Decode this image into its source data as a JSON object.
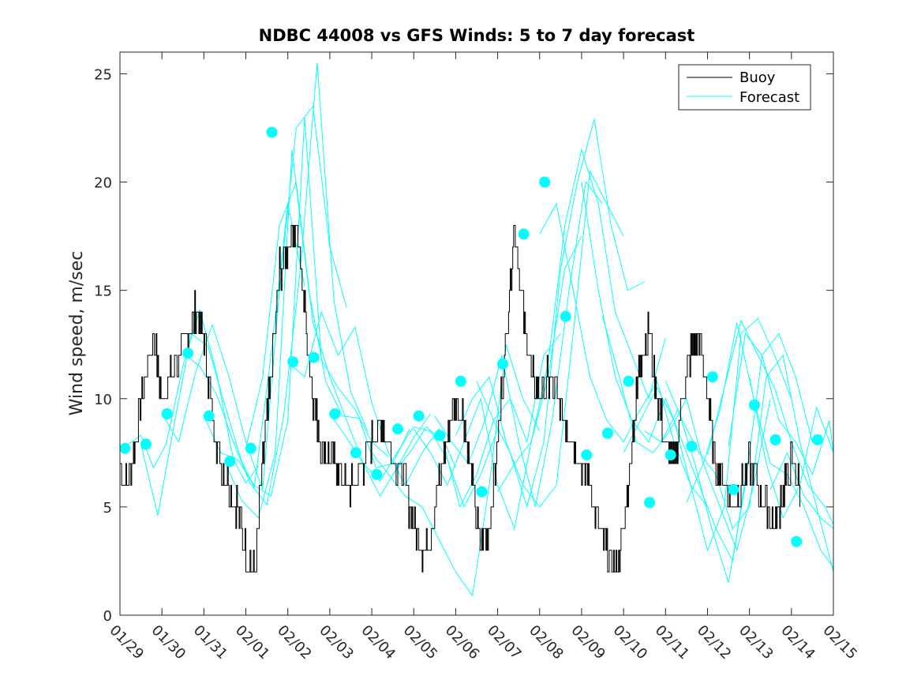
{
  "chart_data": {
    "type": "line",
    "title": "NDBC 44008 vs GFS Winds: 5 to 7 day forecast",
    "xlabel": "",
    "ylabel": "Wind speed, m/sec",
    "xlim": [
      0,
      17
    ],
    "ylim": [
      0,
      26
    ],
    "x_unit": "days since 01/29",
    "x_tick_values": [
      0,
      1,
      2,
      3,
      4,
      5,
      6,
      7,
      8,
      9,
      10,
      11,
      12,
      13,
      14,
      15,
      16,
      17
    ],
    "x_tick_labels": [
      "01/29",
      "01/30",
      "01/31",
      "02/01",
      "02/02",
      "02/03",
      "02/04",
      "02/05",
      "02/06",
      "02/07",
      "02/08",
      "02/09",
      "02/10",
      "02/11",
      "02/12",
      "02/13",
      "02/14",
      "02/15"
    ],
    "y_tick_values": [
      0,
      5,
      10,
      15,
      20,
      25
    ],
    "y_tick_labels": [
      "0",
      "5",
      "10",
      "15",
      "20",
      "25"
    ],
    "legend": {
      "placement": "top-right",
      "entries": [
        {
          "label": "Buoy",
          "color": "#000000"
        },
        {
          "label": "Forecast",
          "color": "#00ffff"
        }
      ]
    },
    "colors": {
      "buoy": "#000000",
      "forecast": "#00ffff",
      "axis": "#262626"
    },
    "buoy": {
      "x": [
        0,
        0.15,
        0.3,
        0.45,
        0.6,
        0.8,
        1.0,
        1.2,
        1.4,
        1.6,
        1.8,
        2.0,
        2.2,
        2.4,
        2.6,
        2.8,
        3.0,
        3.2,
        3.4,
        3.6,
        3.8,
        4.0,
        4.2,
        4.4,
        4.6,
        4.8,
        5.0,
        5.2,
        5.4,
        5.6,
        5.8,
        6.0,
        6.2,
        6.4,
        6.6,
        6.8,
        7.0,
        7.2,
        7.4,
        7.6,
        7.8,
        8.0,
        8.2,
        8.4,
        8.6,
        8.8,
        9.0,
        9.2,
        9.4,
        9.6,
        9.8,
        10.0,
        10.2,
        10.4,
        10.6,
        10.8,
        11.0,
        11.2,
        11.4,
        11.6,
        11.8,
        12.0,
        12.2,
        12.4,
        12.6,
        12.8,
        13.0,
        13.2,
        13.4,
        13.6,
        13.8,
        14.0,
        14.2,
        14.4,
        14.6,
        14.8,
        15.0,
        15.2,
        15.4,
        15.6,
        15.8,
        16.0,
        16.2
      ],
      "y": [
        7,
        6,
        7,
        9,
        11,
        13,
        10,
        11,
        12,
        13,
        14,
        13,
        9,
        7,
        6,
        5,
        3,
        2,
        7,
        11,
        16,
        17,
        18,
        14,
        10,
        8,
        7,
        7,
        6,
        6,
        7,
        8,
        9,
        8,
        7,
        6,
        4,
        3,
        4,
        6,
        8,
        10,
        9,
        6,
        3,
        4,
        8,
        13,
        18,
        14,
        11,
        10,
        11,
        10,
        9,
        8,
        7,
        6,
        4,
        3,
        2,
        4,
        8,
        12,
        13,
        10,
        8,
        7,
        10,
        12,
        13,
        10,
        7,
        6,
        5,
        6,
        7,
        6,
        5,
        4,
        6,
        7,
        6
      ],
      "jitter": 1
    },
    "forecast_series": [
      {
        "name": "run1",
        "x": [
          0,
          0.2,
          0.5,
          0.8,
          1.1,
          1.5,
          1.9,
          2.3,
          2.7,
          3.0,
          3.3
        ],
        "y": [
          7.7,
          7.9,
          8.3,
          6.8,
          7.9,
          11.5,
          14.1,
          11.2,
          7.2,
          6.1,
          6.9
        ]
      },
      {
        "name": "run2",
        "x": [
          0.5,
          0.9,
          1.3,
          1.7,
          2.1,
          2.5,
          2.9,
          3.2,
          3.6,
          4.0,
          4.4
        ],
        "y": [
          7.9,
          4.6,
          8.9,
          13.0,
          12.4,
          9.7,
          7.1,
          5.9,
          12.0,
          19.0,
          15.2
        ]
      },
      {
        "name": "run3",
        "x": [
          1.0,
          1.4,
          1.8,
          2.2,
          2.6,
          3.0,
          3.4,
          3.8,
          4.2,
          4.6,
          5.0,
          5.4
        ],
        "y": [
          9.3,
          8.0,
          11.2,
          13.4,
          11.0,
          8.0,
          5.8,
          15.0,
          22.5,
          23.5,
          17.0,
          14.2
        ]
      },
      {
        "name": "run4",
        "x": [
          1.5,
          1.9,
          2.3,
          2.7,
          3.1,
          3.5,
          3.9,
          4.3,
          4.7,
          5.1,
          5.5,
          5.9
        ],
        "y": [
          12.1,
          11.5,
          10.2,
          8.0,
          6.1,
          5.1,
          9.2,
          16.0,
          25.5,
          14.5,
          10.3,
          8.5
        ]
      },
      {
        "name": "run5",
        "x": [
          2.0,
          2.4,
          2.8,
          3.2,
          3.6,
          4.0,
          4.4,
          4.8,
          5.2,
          5.6,
          6.0,
          6.4
        ],
        "y": [
          9.2,
          7.5,
          7.2,
          6.0,
          5.5,
          9.0,
          23.0,
          11.8,
          10.5,
          9.5,
          8.0,
          7.3
        ]
      },
      {
        "name": "run6",
        "x": [
          2.5,
          2.9,
          3.3,
          3.7,
          4.1,
          4.5,
          4.9,
          5.3,
          5.7,
          6.1,
          6.5,
          6.9
        ],
        "y": [
          7.1,
          5.3,
          4.5,
          7.5,
          21.5,
          15.0,
          10.8,
          9.2,
          9.1,
          6.8,
          7.0,
          8.6
        ]
      },
      {
        "name": "run7",
        "x": [
          3.0,
          3.4,
          3.8,
          4.2,
          4.6,
          5.0,
          5.4,
          5.8,
          6.2,
          6.6,
          7.0,
          7.4
        ],
        "y": [
          7.7,
          11.0,
          18.0,
          20.0,
          13.5,
          11.0,
          9.0,
          7.0,
          5.5,
          6.8,
          8.2,
          9.3
        ]
      },
      {
        "name": "run8",
        "x": [
          4.0,
          4.4,
          4.8,
          5.2,
          5.6,
          6.0,
          6.4,
          6.8,
          7.2,
          7.6,
          8.0
        ],
        "y": [
          11.7,
          11.0,
          14.0,
          12.0,
          13.3,
          9.8,
          7.5,
          6.0,
          7.5,
          8.6,
          6.8
        ]
      },
      {
        "name": "run9",
        "x": [
          5.0,
          5.4,
          5.8,
          6.2,
          6.6,
          7.0,
          7.4,
          7.8,
          8.2,
          8.6,
          9.0
        ],
        "y": [
          9.3,
          8.2,
          7.0,
          6.2,
          7.5,
          8.7,
          8.5,
          7.2,
          5.0,
          6.5,
          8.6
        ]
      },
      {
        "name": "run10",
        "x": [
          6.0,
          6.4,
          6.8,
          7.2,
          7.6,
          8.0,
          8.4,
          8.8,
          9.2,
          9.6,
          10.0
        ],
        "y": [
          7.5,
          6.5,
          5.5,
          5.0,
          3.5,
          2.0,
          0.9,
          6.0,
          12.5,
          10.0,
          8.5
        ]
      },
      {
        "name": "run11",
        "x": [
          6.5,
          6.9,
          7.3,
          7.7,
          8.1,
          8.5,
          8.9,
          9.3,
          9.7,
          10.1,
          10.5
        ],
        "y": [
          6.5,
          7.5,
          8.7,
          8.0,
          5.0,
          6.5,
          9.0,
          10.0,
          8.0,
          12.0,
          13.0
        ]
      },
      {
        "name": "run12",
        "x": [
          7.0,
          7.4,
          7.8,
          8.2,
          8.6,
          9.0,
          9.4,
          9.8,
          10.2,
          10.6,
          11.0
        ],
        "y": [
          8.6,
          7.5,
          6.0,
          8.0,
          10.0,
          6.0,
          4.0,
          8.0,
          11.0,
          16.0,
          17.5
        ]
      },
      {
        "name": "run13",
        "x": [
          7.5,
          7.9,
          8.3,
          8.7,
          9.1,
          9.5,
          9.9,
          10.3,
          10.7,
          11.1,
          11.5
        ],
        "y": [
          9.2,
          8.0,
          7.0,
          9.0,
          12.0,
          8.0,
          5.0,
          9.0,
          15.0,
          20.0,
          19.0
        ]
      },
      {
        "name": "run14",
        "x": [
          8.0,
          8.4,
          8.8,
          9.2,
          9.6,
          10.0,
          10.4,
          10.8,
          11.2,
          11.6,
          12.0
        ],
        "y": [
          8.3,
          10.0,
          11.0,
          8.0,
          6.0,
          5.0,
          6.0,
          13.0,
          20.5,
          19.0,
          17.5
        ]
      },
      {
        "name": "run15",
        "x": [
          8.5,
          8.9,
          9.3,
          9.7,
          10.1,
          10.5,
          10.9,
          11.3,
          11.7,
          12.1,
          12.5
        ],
        "y": [
          10.8,
          9.0,
          7.5,
          5.0,
          8.0,
          16.0,
          20.0,
          22.9,
          18.0,
          15.0,
          15.4
        ]
      },
      {
        "name": "run16",
        "x": [
          9.0,
          9.4,
          9.8,
          10.2,
          10.6,
          11.0,
          11.4,
          11.8,
          12.2,
          12.6,
          13.0
        ],
        "y": [
          5.7,
          7.0,
          8.0,
          11.6,
          18.0,
          21.5,
          19.0,
          14.0,
          12.0,
          10.0,
          12.8
        ]
      },
      {
        "name": "run17",
        "x": [
          10.0,
          10.4,
          10.8,
          11.2,
          11.6,
          12.0,
          12.4,
          12.8,
          13.2,
          13.6,
          14.0
        ],
        "y": [
          17.6,
          19.0,
          15.0,
          11.0,
          9.0,
          8.0,
          9.5,
          10.8,
          8.0,
          6.0,
          5.0
        ]
      },
      {
        "name": "run18",
        "x": [
          11.0,
          11.4,
          11.8,
          12.2,
          12.6,
          13.0,
          13.4,
          13.8,
          14.2,
          14.6,
          15.0
        ],
        "y": [
          20.0,
          15.0,
          11.0,
          9.0,
          8.0,
          10.0,
          8.0,
          6.0,
          4.0,
          2.5,
          7.5
        ]
      },
      {
        "name": "run19",
        "x": [
          11.5,
          11.9,
          12.3,
          12.7,
          13.1,
          13.5,
          13.9,
          14.3,
          14.7,
          15.1,
          15.5
        ],
        "y": [
          13.8,
          11.0,
          8.0,
          7.5,
          8.5,
          10.0,
          7.0,
          5.0,
          3.0,
          6.0,
          10.0
        ]
      },
      {
        "name": "run20",
        "x": [
          12.0,
          12.4,
          12.8,
          13.2,
          13.6,
          14.0,
          14.4,
          14.8,
          15.2,
          15.6,
          16.0
        ],
        "y": [
          7.5,
          9.0,
          10.5,
          9.0,
          6.0,
          3.0,
          5.0,
          13.0,
          13.7,
          12.0,
          10.0
        ]
      },
      {
        "name": "run21",
        "x": [
          12.5,
          12.9,
          13.3,
          13.7,
          14.1,
          14.5,
          14.9,
          15.3,
          15.7,
          16.1,
          16.5
        ],
        "y": [
          8.5,
          8.0,
          9.5,
          7.0,
          4.0,
          1.5,
          6.0,
          12.0,
          13.0,
          11.0,
          8.0
        ]
      },
      {
        "name": "run22",
        "x": [
          13.0,
          13.4,
          13.8,
          14.2,
          14.6,
          15.0,
          15.4,
          15.8,
          16.2,
          16.6,
          17.0
        ],
        "y": [
          10.8,
          9.0,
          7.5,
          6.5,
          4.0,
          5.0,
          11.0,
          12.0,
          8.0,
          5.0,
          2.0
        ]
      },
      {
        "name": "run23",
        "x": [
          13.5,
          13.9,
          14.3,
          14.7,
          15.1,
          15.5,
          15.9,
          16.3,
          16.7,
          17.0
        ],
        "y": [
          5.2,
          7.0,
          9.5,
          13.5,
          10.0,
          7.0,
          6.5,
          5.0,
          3.0,
          2.2
        ]
      },
      {
        "name": "run24",
        "x": [
          14.0,
          14.4,
          14.8,
          15.2,
          15.6,
          16.0,
          16.4,
          16.8,
          17.0
        ],
        "y": [
          7.4,
          10.5,
          13.6,
          12.0,
          10.5,
          8.0,
          6.0,
          5.0,
          4.2
        ]
      },
      {
        "name": "run25",
        "x": [
          14.5,
          14.9,
          15.3,
          15.7,
          16.1,
          16.5,
          16.9,
          17.0
        ],
        "y": [
          7.8,
          13.0,
          12.0,
          9.0,
          8.0,
          6.5,
          9.0,
          7.5
        ]
      },
      {
        "name": "run26",
        "x": [
          15.0,
          15.4,
          15.8,
          16.2,
          16.6,
          17.0
        ],
        "y": [
          11.0,
          7.0,
          4.5,
          6.0,
          9.6,
          7.5
        ]
      },
      {
        "name": "run27",
        "x": [
          15.5,
          15.9,
          16.3,
          16.7,
          17.0
        ],
        "y": [
          5.8,
          7.5,
          5.5,
          4.5,
          4.0
        ]
      }
    ],
    "forecast_markers": {
      "x": [
        0.12,
        0.62,
        1.12,
        1.62,
        2.12,
        2.62,
        3.12,
        3.62,
        4.12,
        4.62,
        5.12,
        5.62,
        6.12,
        6.62,
        7.12,
        7.62,
        8.12,
        8.62,
        9.12,
        9.62,
        10.12,
        10.62,
        11.12,
        11.62,
        12.12,
        12.62,
        13.12,
        13.62,
        14.12,
        14.62,
        15.12,
        15.62,
        16.12,
        16.62
      ],
      "y": [
        7.7,
        7.9,
        9.3,
        12.1,
        9.2,
        7.1,
        7.7,
        22.3,
        11.7,
        11.9,
        9.3,
        7.5,
        6.5,
        8.6,
        9.2,
        8.3,
        10.8,
        5.7,
        11.6,
        17.6,
        20.0,
        13.8,
        7.4,
        8.4,
        10.8,
        5.2,
        7.4,
        7.8,
        11.0,
        5.8,
        9.7,
        8.1,
        3.4,
        8.1
      ]
    }
  }
}
